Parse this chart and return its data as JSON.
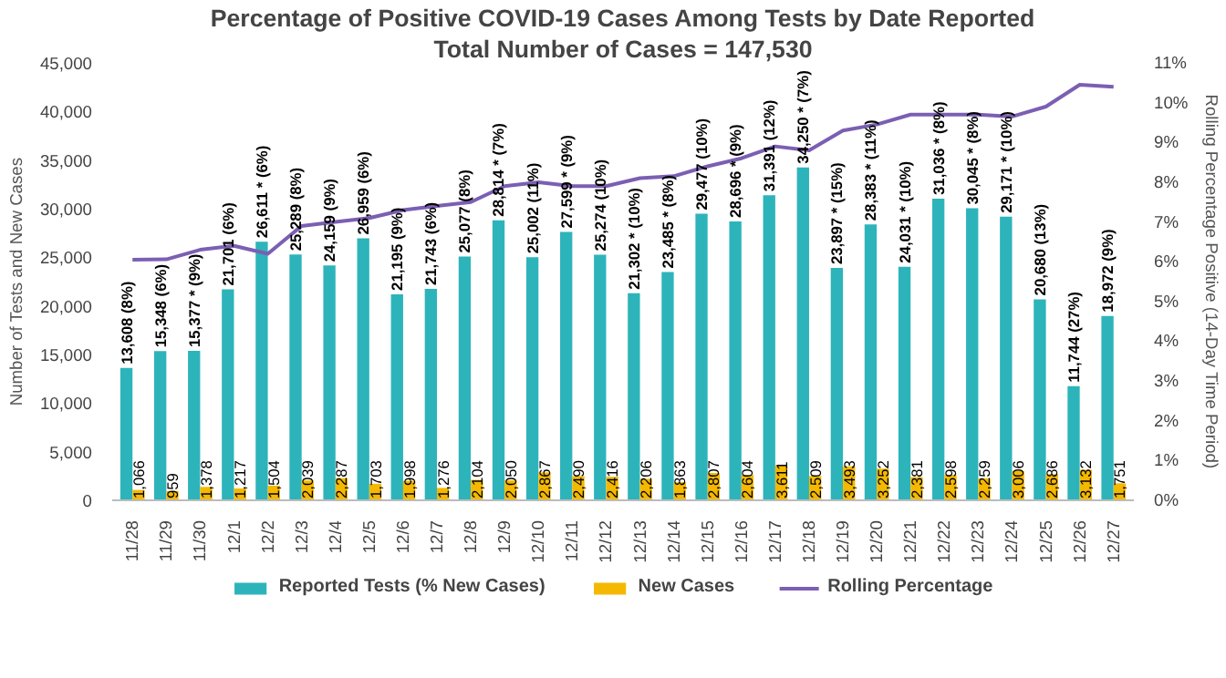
{
  "chart_data": {
    "type": "bar",
    "title": "Percentage of Positive COVID-19 Cases Among Tests by Date Reported",
    "subtitle": "Total Number of Cases = 147,530",
    "ylabel": "Number of Tests and New Cases",
    "y2label": "Rolling Percentage Positive (14-Day Time Period)",
    "categories": [
      "11/28",
      "11/29",
      "11/30",
      "12/1",
      "12/2",
      "12/3",
      "12/4",
      "12/5",
      "12/6",
      "12/7",
      "12/8",
      "12/9",
      "12/10",
      "12/11",
      "12/12",
      "12/13",
      "12/14",
      "12/15",
      "12/16",
      "12/17",
      "12/18",
      "12/19",
      "12/20",
      "12/21",
      "12/22",
      "12/23",
      "12/24",
      "12/25",
      "12/26",
      "12/27"
    ],
    "ylim": [
      0,
      45000
    ],
    "yticks": [
      {
        "value": 0,
        "label": "0"
      },
      {
        "value": 5000,
        "label": "5,000"
      },
      {
        "value": 10000,
        "label": "10,000"
      },
      {
        "value": 15000,
        "label": "15,000"
      },
      {
        "value": 20000,
        "label": "20,000"
      },
      {
        "value": 25000,
        "label": "25,000"
      },
      {
        "value": 30000,
        "label": "30,000"
      },
      {
        "value": 35000,
        "label": "35,000"
      },
      {
        "value": 40000,
        "label": "40,000"
      },
      {
        "value": 45000,
        "label": "45,000"
      }
    ],
    "y2lim": [
      0,
      11
    ],
    "y2ticks": [
      {
        "value": 0,
        "label": "0%"
      },
      {
        "value": 1,
        "label": "1%"
      },
      {
        "value": 2,
        "label": "2%"
      },
      {
        "value": 3,
        "label": "3%"
      },
      {
        "value": 4,
        "label": "4%"
      },
      {
        "value": 5,
        "label": "5%"
      },
      {
        "value": 6,
        "label": "6%"
      },
      {
        "value": 7,
        "label": "7%"
      },
      {
        "value": 8,
        "label": "8%"
      },
      {
        "value": 9,
        "label": "9%"
      },
      {
        "value": 10,
        "label": "10%"
      },
      {
        "value": 11,
        "label": "11%"
      }
    ],
    "grid": false,
    "legend": "bottom",
    "series": [
      {
        "name": "Reported Tests (% New Cases)",
        "type": "bar",
        "color": "#2db4bb",
        "values": [
          13608,
          15348,
          15377,
          21701,
          26611,
          25289,
          24159,
          26959,
          21195,
          21743,
          25077,
          28814,
          25002,
          27599,
          25274,
          21302,
          23485,
          29477,
          28696,
          31391,
          34250,
          23897,
          28383,
          24031,
          31036,
          30045,
          29171,
          20680,
          11744,
          18972
        ],
        "value_labels": [
          "13,608 (8%)",
          "15,348 (6%)",
          "15,377 * (9%)",
          "21,701 (6%)",
          "26,611 * (6%)",
          "25,289 (8%)",
          "24,159 (9%)",
          "26,959 (6%)",
          "21,195 (9%)",
          "21,743 (6%)",
          "25,077 (8%)",
          "28,814 * (7%)",
          "25,002 (11%)",
          "27,599 * (9%)",
          "25,274 (10%)",
          "21,302 * (10%)",
          "23,485 * (8%)",
          "29,477 (10%)",
          "28,696 * (9%)",
          "31,391 (12%)",
          "34,250 * (7%)",
          "23,897 * (15%)",
          "28,383 * (11%)",
          "24,031 * (10%)",
          "31,036 * (8%)",
          "30,045 * (8%)",
          "29,171 * (10%)",
          "20,680 (13%)",
          "11,744 (27%)",
          "18,972 (9%)"
        ]
      },
      {
        "name": "New Cases",
        "type": "bar",
        "color": "#f5b800",
        "values": [
          1066,
          959,
          1378,
          1217,
          1504,
          2039,
          2287,
          1703,
          1998,
          1276,
          2104,
          2050,
          2867,
          2490,
          2416,
          2206,
          1863,
          2807,
          2604,
          3611,
          2509,
          3493,
          3252,
          2381,
          2598,
          2259,
          3006,
          2686,
          3132,
          1751
        ],
        "value_labels": [
          "1,066",
          "959",
          "1,378",
          "1,217",
          "1,504",
          "2,039",
          "2,287",
          "1,703",
          "1,998",
          "1,276",
          "2,104",
          "2,050",
          "2,867",
          "2,490",
          "2,416",
          "2,206",
          "1,863",
          "2,807",
          "2,604",
          "3,611",
          "2,509",
          "3,493",
          "3,252",
          "2,381",
          "2,598",
          "2,259",
          "3,006",
          "2,686",
          "3,132",
          "1,751"
        ]
      },
      {
        "name": "Rolling Percentage",
        "type": "line",
        "axis": "y2",
        "color": "#7b5fb3",
        "values": [
          6.05,
          6.06,
          6.3,
          6.4,
          6.2,
          6.9,
          7.0,
          7.1,
          7.3,
          7.4,
          7.5,
          7.9,
          8.0,
          7.9,
          7.9,
          8.1,
          8.15,
          8.4,
          8.6,
          8.9,
          8.8,
          9.3,
          9.45,
          9.7,
          9.7,
          9.7,
          9.65,
          9.9,
          10.45,
          10.4
        ]
      }
    ]
  }
}
